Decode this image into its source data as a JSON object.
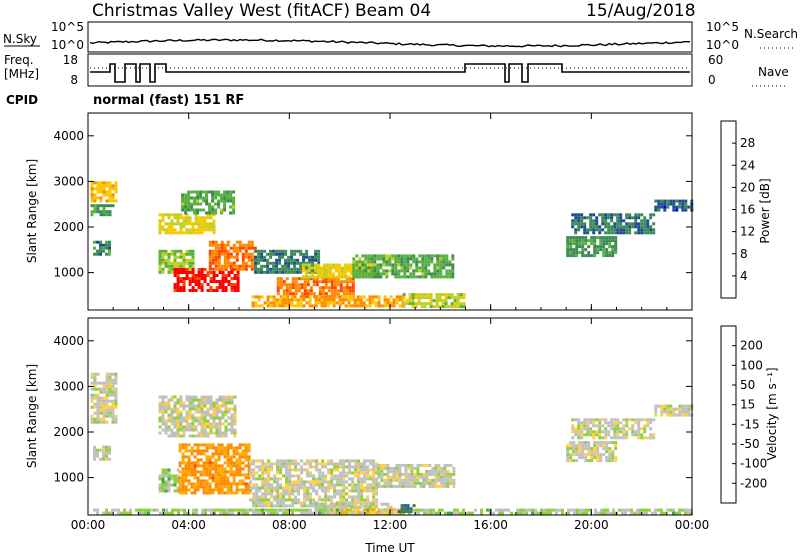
{
  "header": {
    "station": "Christmas Valley West (fitACF)",
    "beam": "Beam 04",
    "date": "15/Aug/2018"
  },
  "status_panel": {
    "nsky_label": "N.Sky",
    "nsky_ticks": [
      "10^5",
      "10^0"
    ],
    "nsearch_label": "N.Search",
    "freq_label_line1": "Freq.",
    "freq_label_line2": "[MHz]",
    "freq_ticks": [
      "18",
      "8"
    ],
    "nave_label": "Nave",
    "nave_ticks": [
      "60",
      "0"
    ],
    "cpid_label": "CPID",
    "cpid_value": "normal (fast) 151 RF"
  },
  "colors": {
    "power_scale": [
      "#0000ff",
      "#1f4e8f",
      "#3b8a58",
      "#58b040",
      "#c0d020",
      "#f8c800",
      "#ff8800",
      "#ff4400",
      "#ff0000"
    ],
    "velocity_scale": [
      "#ff0000",
      "#ff4400",
      "#ff8800",
      "#ffaa00",
      "#ffd040",
      "#c0c0c0",
      "#90d040",
      "#40a840",
      "#3d7d50",
      "#2860a8",
      "#1030c0"
    ]
  },
  "chart_data": [
    {
      "type": "heatmap",
      "panel": "power",
      "xlabel": "Time UT",
      "ylabel": "Slant Range [km]",
      "xlim": [
        0,
        24
      ],
      "ylim": [
        180,
        4500
      ],
      "y_ticks": [
        "1000",
        "2000",
        "3000",
        "4000"
      ],
      "colorbar_label": "Power [dB]",
      "colorbar_ticks": [
        "28",
        "24",
        "20",
        "16",
        "12",
        "8",
        "4"
      ],
      "colorbar_range": [
        0,
        32
      ],
      "regions": [
        {
          "t0": 0.1,
          "t1": 1.1,
          "r0": 2600,
          "r1": 3000,
          "value": 20
        },
        {
          "t0": 0.1,
          "t1": 1.0,
          "r0": 2300,
          "r1": 2500,
          "value": 10
        },
        {
          "t0": 0.2,
          "t1": 0.9,
          "r0": 1400,
          "r1": 1700,
          "value": 9
        },
        {
          "t0": 2.8,
          "t1": 5.0,
          "r0": 1900,
          "r1": 2300,
          "value": 18
        },
        {
          "t0": 3.7,
          "t1": 5.8,
          "r0": 2300,
          "r1": 2800,
          "value": 12
        },
        {
          "t0": 2.8,
          "t1": 4.2,
          "r0": 1000,
          "r1": 1500,
          "value": 14
        },
        {
          "t0": 3.4,
          "t1": 6.0,
          "r0": 600,
          "r1": 1100,
          "value": 30
        },
        {
          "t0": 4.8,
          "t1": 6.6,
          "r0": 1100,
          "r1": 1700,
          "value": 24
        },
        {
          "t0": 6.6,
          "t1": 9.2,
          "r0": 1000,
          "r1": 1500,
          "value": 8
        },
        {
          "t0": 7.5,
          "t1": 10.5,
          "r0": 450,
          "r1": 900,
          "value": 24
        },
        {
          "t0": 8.5,
          "t1": 11.5,
          "r0": 900,
          "r1": 1200,
          "value": 18
        },
        {
          "t0": 10.5,
          "t1": 14.5,
          "r0": 900,
          "r1": 1400,
          "value": 12
        },
        {
          "t0": 6.5,
          "t1": 12.5,
          "r0": 250,
          "r1": 500,
          "value": 22
        },
        {
          "t0": 12.5,
          "t1": 15.0,
          "r0": 250,
          "r1": 550,
          "value": 16
        },
        {
          "t0": 19.0,
          "t1": 21.0,
          "r0": 1400,
          "r1": 1800,
          "value": 10
        },
        {
          "t0": 19.2,
          "t1": 22.5,
          "r0": 1900,
          "r1": 2300,
          "value": 8
        },
        {
          "t0": 22.5,
          "t1": 24.0,
          "r0": 2400,
          "r1": 2600,
          "value": 6
        }
      ]
    },
    {
      "type": "heatmap",
      "panel": "velocity",
      "xlabel": "Time UT",
      "ylabel": "Slant Range [km]",
      "xlim": [
        0,
        24
      ],
      "ylim": [
        180,
        4500
      ],
      "x_ticks": [
        "00:00",
        "04:00",
        "08:00",
        "12:00",
        "16:00",
        "20:00",
        "00:00"
      ],
      "y_ticks": [
        "1000",
        "2000",
        "3000",
        "4000"
      ],
      "colorbar_label": "Velocity [m s⁻¹]",
      "colorbar_ticks": [
        "200",
        "100",
        "50",
        "15",
        "-15",
        "-50",
        "-100",
        "-200"
      ],
      "colorbar_range": [
        -250,
        250
      ],
      "regions": [
        {
          "t0": 0.1,
          "t1": 1.1,
          "r0": 2200,
          "r1": 3300,
          "value": 0
        },
        {
          "t0": 0.2,
          "t1": 0.9,
          "r0": 1400,
          "r1": 1700,
          "value": 0
        },
        {
          "t0": 2.8,
          "t1": 5.8,
          "r0": 1900,
          "r1": 2800,
          "value": 0
        },
        {
          "t0": 2.8,
          "t1": 3.6,
          "r0": 700,
          "r1": 1200,
          "value": 40
        },
        {
          "t0": 3.6,
          "t1": 6.4,
          "r0": 650,
          "r1": 1750,
          "value": -120
        },
        {
          "t0": 6.4,
          "t1": 11.5,
          "r0": 400,
          "r1": 1400,
          "value": 0
        },
        {
          "t0": 11.5,
          "t1": 14.5,
          "r0": 800,
          "r1": 1300,
          "value": 0
        },
        {
          "t0": 9.0,
          "t1": 12.0,
          "r0": 250,
          "r1": 450,
          "value": 0
        },
        {
          "t0": 0.2,
          "t1": 24.0,
          "r0": 200,
          "r1": 320,
          "value": 30
        },
        {
          "t0": 10.0,
          "t1": 12.5,
          "r0": 200,
          "r1": 330,
          "value": -60
        },
        {
          "t0": 12.3,
          "t1": 13.0,
          "r0": 280,
          "r1": 420,
          "value": 160
        },
        {
          "t0": 19.0,
          "t1": 21.0,
          "r0": 1400,
          "r1": 1800,
          "value": 0
        },
        {
          "t0": 19.2,
          "t1": 22.5,
          "r0": 1900,
          "r1": 2300,
          "value": 0
        },
        {
          "t0": 22.5,
          "t1": 24.0,
          "r0": 2400,
          "r1": 2600,
          "value": 0
        }
      ]
    }
  ]
}
